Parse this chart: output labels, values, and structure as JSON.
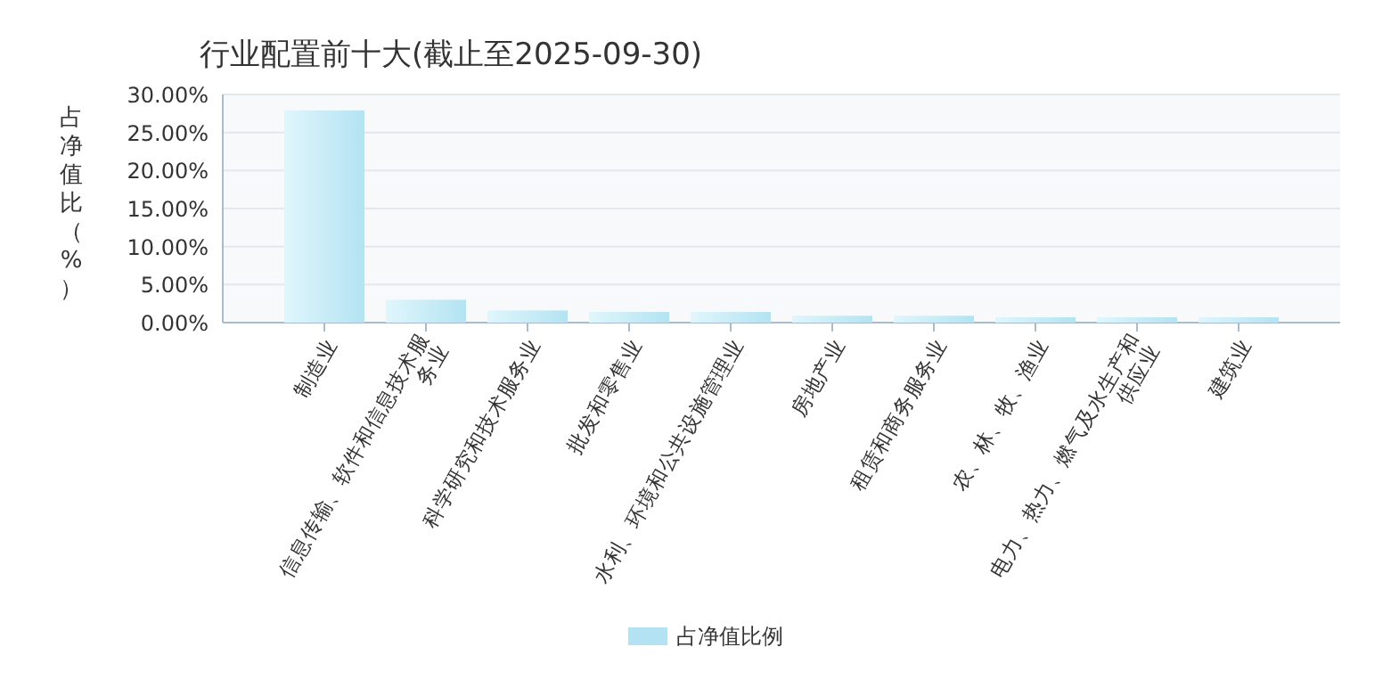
{
  "chart_data": {
    "type": "bar",
    "title": "行业配置前十大(截止至2025-09-30)",
    "ylabel": "占净值比（%）",
    "categories": [
      "制造业",
      "信息传输、软件和信息技术服务业",
      "科学研究和技术服务业",
      "批发和零售业",
      "水利、环境和公共设施管理业",
      "房地产业",
      "租赁和商务服务业",
      "农、林、牧、渔业",
      "电力、热力、燃气及水生产和供应业",
      "建筑业"
    ],
    "series": [
      {
        "name": "占净值比例",
        "color": "#b3e3f2",
        "values": [
          27.9,
          3.0,
          1.6,
          1.4,
          1.4,
          0.9,
          0.9,
          0.7,
          0.7,
          0.7
        ]
      }
    ],
    "ylim": [
      0,
      30
    ],
    "yticks": [
      {
        "value": 0,
        "label": "0.00%"
      },
      {
        "value": 5,
        "label": "5.00%"
      },
      {
        "value": 10,
        "label": "10.00%"
      },
      {
        "value": 15,
        "label": "15.00%"
      },
      {
        "value": 20,
        "label": "20.00%"
      },
      {
        "value": 25,
        "label": "25.00%"
      },
      {
        "value": 30,
        "label": "30.00%"
      }
    ],
    "grid": "y",
    "legend": "bottom"
  }
}
